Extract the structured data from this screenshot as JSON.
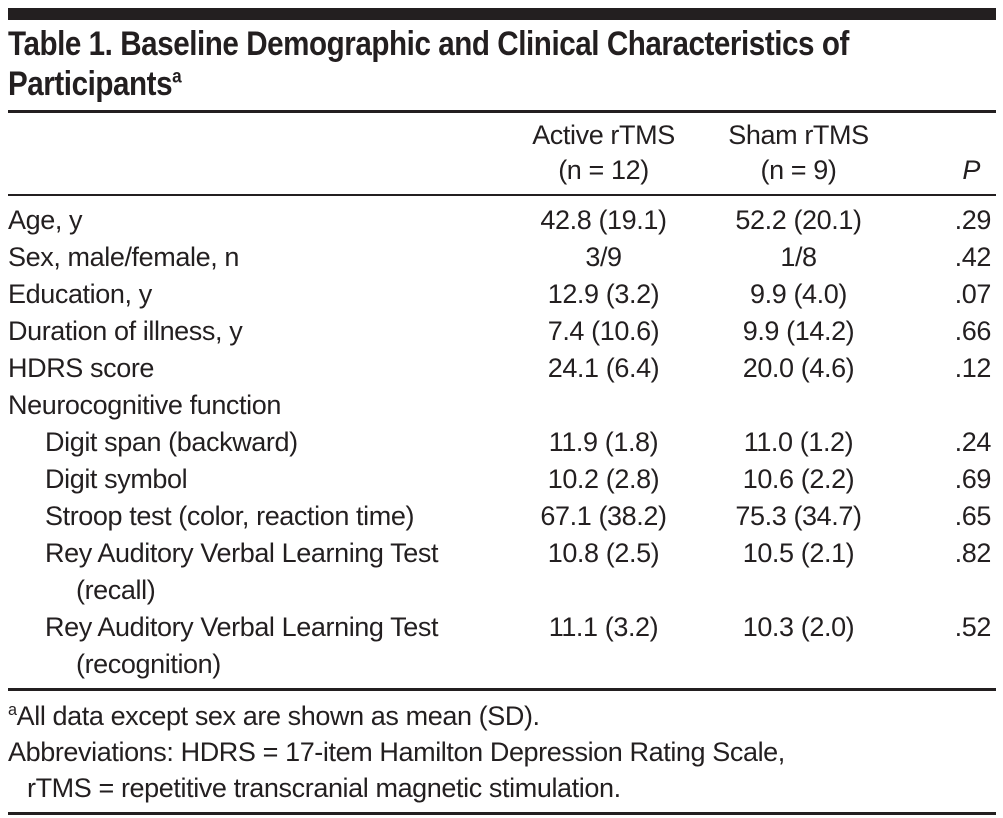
{
  "title": {
    "line1": "Table 1. Baseline Demographic and Clinical Characteristics of",
    "line2": "Participants",
    "superscript": "a"
  },
  "table": {
    "columns": [
      {
        "label": ""
      },
      {
        "line1": "Active rTMS",
        "line2": "(n = 12)"
      },
      {
        "line1": "Sham rTMS",
        "line2": "(n = 9)"
      },
      {
        "label": "P"
      }
    ],
    "rows": [
      {
        "label": "Age, y",
        "indent": 0,
        "active": "42.8 (19.1)",
        "sham": "52.2 (20.1)",
        "p": ".29"
      },
      {
        "label": "Sex, male/female, n",
        "indent": 0,
        "active": "3/9",
        "sham": "1/8",
        "p": ".42"
      },
      {
        "label": "Education, y",
        "indent": 0,
        "active": "12.9 (3.2)",
        "sham": "9.9 (4.0)",
        "p": ".07"
      },
      {
        "label": "Duration of illness, y",
        "indent": 0,
        "active": "7.4 (10.6)",
        "sham": "9.9 (14.2)",
        "p": ".66"
      },
      {
        "label": "HDRS score",
        "indent": 0,
        "active": "24.1 (6.4)",
        "sham": "20.0 (4.6)",
        "p": ".12"
      },
      {
        "label": "Neurocognitive function",
        "indent": 0,
        "section": true,
        "active": "",
        "sham": "",
        "p": ""
      },
      {
        "label": "Digit span (backward)",
        "indent": 1,
        "active": "11.9 (1.8)",
        "sham": "11.0 (1.2)",
        "p": ".24"
      },
      {
        "label": "Digit symbol",
        "indent": 1,
        "active": "10.2 (2.8)",
        "sham": "10.6 (2.2)",
        "p": ".69"
      },
      {
        "label": "Stroop test (color, reaction time)",
        "indent": 1,
        "active": "67.1 (38.2)",
        "sham": "75.3 (34.7)",
        "p": ".65"
      },
      {
        "label": "Rey Auditory Verbal Learning Test",
        "label2": "(recall)",
        "indent": 1,
        "active": "10.8 (2.5)",
        "sham": "10.5 (2.1)",
        "p": ".82"
      },
      {
        "label": "Rey Auditory Verbal Learning Test",
        "label2": "(recognition)",
        "indent": 1,
        "active": "11.1 (3.2)",
        "sham": "10.3 (2.0)",
        "p": ".52"
      }
    ]
  },
  "footnotes": {
    "note_marker": "a",
    "note_text": "All data except sex are shown as mean (SD).",
    "abbrev_line1": "Abbreviations: HDRS = 17-item Hamilton Depression Rating Scale,",
    "abbrev_line2": "rTMS = repetitive transcranial magnetic stimulation."
  },
  "colors": {
    "text": "#231f20",
    "rule": "#231f20",
    "background": "#ffffff"
  }
}
